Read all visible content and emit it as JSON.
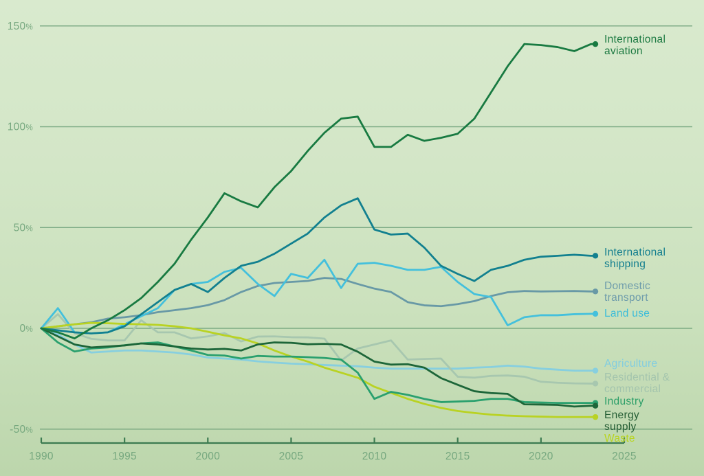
{
  "chart_data": {
    "type": "line",
    "title": "",
    "y_unit": "%",
    "x_range": [
      1990,
      2025
    ],
    "y_range": [
      -50,
      150
    ],
    "grid": true,
    "legend_position": "right-end-labels",
    "x_axis_ticks": [
      1990,
      1995,
      2000,
      2005,
      2010,
      2015,
      2020,
      2025
    ],
    "y_axis_ticks": [
      150,
      100,
      50,
      0,
      -50
    ],
    "y_tick_labels": [
      "150%",
      "100%",
      "50%",
      "0%",
      "-50%"
    ],
    "x_tick_labels": [
      "1990",
      "1995",
      "2000",
      "2005",
      "2010",
      "2015",
      "2020",
      "2025"
    ],
    "years": [
      1990,
      1991,
      1992,
      1993,
      1994,
      1995,
      1996,
      1997,
      1998,
      1999,
      2000,
      2001,
      2002,
      2003,
      2004,
      2005,
      2006,
      2007,
      2008,
      2009,
      2010,
      2011,
      2012,
      2013,
      2014,
      2015,
      2016,
      2017,
      2018,
      2019,
      2020,
      2021,
      2022,
      2023
    ],
    "series": [
      {
        "name": "International aviation",
        "label_lines": [
          "International",
          "aviation"
        ],
        "color": "#187a41",
        "label_color": "#1d7a42",
        "values": [
          0,
          -2,
          -5,
          0,
          4,
          9,
          15,
          23,
          32,
          44,
          55,
          67,
          63,
          60,
          70,
          78,
          88,
          97,
          104,
          105,
          90,
          90,
          96,
          93,
          94.5,
          96.5,
          104,
          117,
          130,
          141,
          140.5,
          139.5,
          137.5,
          141
        ]
      },
      {
        "name": "International shipping",
        "label_lines": [
          "International",
          "shipping"
        ],
        "color": "#12808f",
        "label_color": "#117d8e",
        "values": [
          0,
          -1,
          -2,
          -2.5,
          -2,
          1,
          7,
          13,
          19,
          22,
          18,
          25,
          31,
          33,
          37,
          42,
          47,
          55,
          61,
          64.5,
          49,
          46.5,
          47,
          40,
          31,
          27,
          23.5,
          29,
          31,
          34,
          35.5,
          36,
          36.5,
          36
        ]
      },
      {
        "name": "Domestic transport",
        "label_lines": [
          "Domestic",
          "transport"
        ],
        "color": "#6899a6",
        "label_color": "#6e9cab",
        "values": [
          0,
          1,
          2,
          3,
          4.8,
          5.5,
          6.5,
          8,
          9,
          10,
          11.5,
          14,
          18,
          21,
          22.5,
          23,
          23.5,
          25,
          24.5,
          22,
          19.7,
          18,
          13,
          11.4,
          11,
          12,
          13.5,
          16,
          17.9,
          18.5,
          18.3,
          18.4,
          18.5,
          18.3
        ]
      },
      {
        "name": "Land use",
        "label_lines": [
          "Land use"
        ],
        "color": "#44c0dc",
        "label_color": "#3bbcd9",
        "values": [
          0,
          10,
          -2,
          -2.5,
          -2,
          2,
          6,
          10,
          19,
          22,
          23,
          28,
          30,
          22,
          16,
          27,
          25,
          34,
          20,
          32,
          32.5,
          31,
          29,
          29,
          30.5,
          23,
          17,
          15.5,
          1.5,
          5.5,
          6.5,
          6.5,
          7,
          7.2
        ]
      },
      {
        "name": "Agriculture",
        "label_lines": [
          "Agriculture"
        ],
        "color": "#87cfdf",
        "label_color": "#82cde0",
        "values": [
          0,
          -3,
          -8,
          -12,
          -11.5,
          -11,
          -11,
          -11.5,
          -12,
          -13,
          -14.5,
          -15,
          -15.5,
          -16.4,
          -17,
          -17.5,
          -17.8,
          -18.2,
          -18.5,
          -18.8,
          -19.5,
          -20,
          -20,
          -20,
          -20,
          -20,
          -19.5,
          -19.2,
          -18.5,
          -19,
          -20,
          -20.5,
          -21,
          -21
        ]
      },
      {
        "name": "Residential & commercial",
        "label_lines": [
          "Residential &",
          "commercial"
        ],
        "color": "#a7c7af",
        "label_color": "#a3c4ad",
        "values": [
          0,
          7,
          -2.4,
          -5.2,
          -6,
          -6,
          4,
          -2,
          -2,
          -5,
          -4,
          -2.4,
          -6.5,
          -4.1,
          -4,
          -4.4,
          -4.5,
          -5.1,
          -16,
          -10,
          -8,
          -6,
          -15.5,
          -15.2,
          -15,
          -24,
          -24.5,
          -23.6,
          -23.4,
          -24,
          -26.5,
          -27,
          -27.3,
          -27.4
        ]
      },
      {
        "name": "Industry",
        "label_lines": [
          "Industry"
        ],
        "color": "#2aa06e",
        "label_color": "#2b9e68",
        "values": [
          0,
          -7,
          -11.5,
          -10,
          -9.5,
          -8.4,
          -7.5,
          -7,
          -9,
          -11,
          -13.2,
          -13.5,
          -15,
          -13.7,
          -14,
          -14,
          -14.3,
          -14.7,
          -15.5,
          -22,
          -35,
          -31.5,
          -33,
          -35,
          -36.6,
          -36.3,
          -36,
          -35,
          -35,
          -36.6,
          -36.8,
          -37,
          -37,
          -37
        ]
      },
      {
        "name": "Energy supply",
        "label_lines": [
          "Energy",
          "supply"
        ],
        "color": "#1d6639",
        "label_color": "#235c33",
        "values": [
          0,
          -4,
          -8,
          -9.5,
          -9,
          -8.5,
          -7.5,
          -8,
          -9,
          -10,
          -10.5,
          -10.2,
          -11,
          -8,
          -7,
          -7.2,
          -7.9,
          -7.7,
          -8,
          -11.6,
          -16.5,
          -18,
          -17.8,
          -19.5,
          -24.7,
          -28,
          -31.2,
          -32.1,
          -32.5,
          -37.7,
          -37.8,
          -38,
          -38.8,
          -38.4
        ]
      },
      {
        "name": "Waste",
        "label_lines": [
          "Waste"
        ],
        "color": "#b9d223",
        "label_color": "#b8d41e",
        "values": [
          0,
          1,
          2,
          2.7,
          2.5,
          2.2,
          2,
          1.7,
          1,
          0,
          -1.7,
          -3.5,
          -5,
          -7.5,
          -11,
          -14,
          -16.5,
          -19.5,
          -22,
          -24.5,
          -29,
          -32,
          -35,
          -37.5,
          -39.5,
          -41,
          -42,
          -42.8,
          -43.3,
          -43.6,
          -43.8,
          -44,
          -44,
          -44
        ]
      }
    ]
  },
  "colors": {
    "background_top": "#d9eace",
    "background_bottom": "#bcd6ac",
    "gridline": "#699e76",
    "axis": "#3c7b51",
    "tick_label": "#76a87f"
  }
}
